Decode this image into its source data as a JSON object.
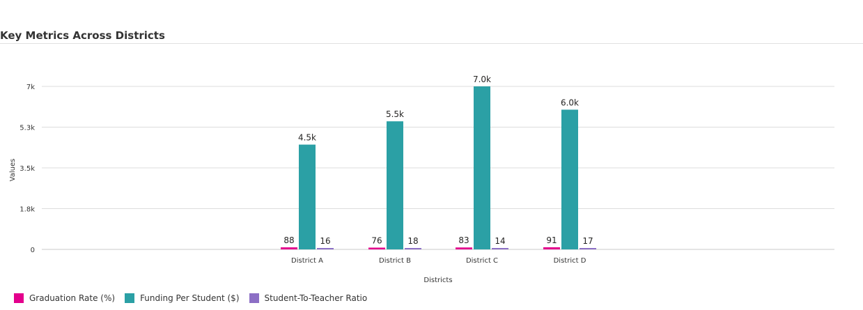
{
  "chart_data": {
    "type": "bar",
    "title": "Key Metrics Across Districts",
    "xlabel": "Districts",
    "ylabel": "Values",
    "categories": [
      "District A",
      "District B",
      "District C",
      "District D"
    ],
    "series": [
      {
        "name": "Graduation Rate (%)",
        "color": "#e3008c",
        "values": [
          88,
          76,
          83,
          91
        ],
        "labels": [
          "88",
          "76",
          "83",
          "91"
        ]
      },
      {
        "name": "Funding Per Student ($)",
        "color": "#2ba0a5",
        "values": [
          4500,
          5500,
          7000,
          6000
        ],
        "labels": [
          "4.5k",
          "5.5k",
          "7.0k",
          "6.0k"
        ]
      },
      {
        "name": "Student-To-Teacher Ratio",
        "color": "#8c6fc5",
        "values": [
          16,
          18,
          14,
          17
        ],
        "labels": [
          "16",
          "18",
          "14",
          "17"
        ]
      }
    ],
    "ylim": [
      0,
      7000
    ],
    "yticks": [
      0,
      1750,
      3500,
      5250,
      7000
    ],
    "ytick_labels": [
      "0",
      "1.8k",
      "3.5k",
      "5.3k",
      "7k"
    ],
    "grid": true,
    "legend_position": "bottom-left"
  }
}
